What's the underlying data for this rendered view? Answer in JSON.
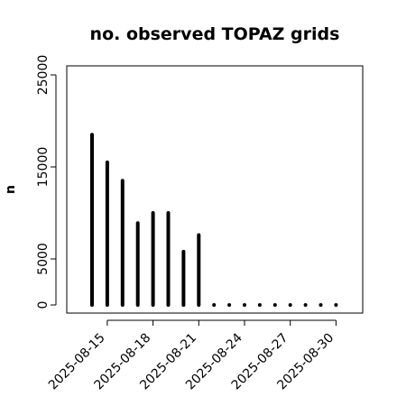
{
  "chart_data": {
    "type": "bar",
    "title": "no. observed TOPAZ grids",
    "xlabel": "",
    "ylabel": "n",
    "ylim": [
      0,
      26000
    ],
    "yticks": [
      0,
      5000,
      15000,
      25000
    ],
    "x": [
      "2025-08-14",
      "2025-08-15",
      "2025-08-16",
      "2025-08-17",
      "2025-08-18",
      "2025-08-19",
      "2025-08-20",
      "2025-08-21",
      "2025-08-22",
      "2025-08-23",
      "2025-08-24",
      "2025-08-25",
      "2025-08-26",
      "2025-08-27",
      "2025-08-28",
      "2025-08-29",
      "2025-08-30"
    ],
    "values": [
      18500,
      15500,
      13500,
      8900,
      10000,
      10000,
      5800,
      7600,
      0,
      0,
      0,
      0,
      0,
      0,
      0,
      0,
      0
    ],
    "xtick_labels": [
      "2025-08-15",
      "2025-08-18",
      "2025-08-21",
      "2025-08-24",
      "2025-08-27",
      "2025-08-30"
    ],
    "highlighted_tick": "2025-08-21",
    "highlight_color": "#228B22",
    "bar_color": "#000000",
    "grid": false,
    "legend": "none"
  }
}
